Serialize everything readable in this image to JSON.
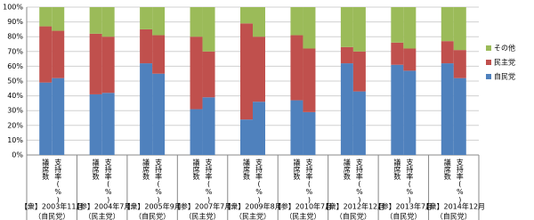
{
  "chart_data": {
    "type": "stacked_bar_100",
    "groups": [
      {
        "name": "【衆】2003年11月",
        "party": "（自民党）"
      },
      {
        "name": "【参】2004年7月",
        "party": "（民主党）"
      },
      {
        "name": "【衆】2005年9月",
        "party": "（自民党）"
      },
      {
        "name": "【参】2007年7月",
        "party": "（民主党）"
      },
      {
        "name": "【衆】2009年8月",
        "party": "（民主党）"
      },
      {
        "name": "【参】2010年7月",
        "party": "（民主党）"
      },
      {
        "name": "【衆】2012年12月",
        "party": "（自民党）"
      },
      {
        "name": "【参】2013年7月",
        "party": "（自民党）"
      },
      {
        "name": "【衆】2014年12月",
        "party": "（自民党）"
      }
    ],
    "categories": [
      "議席数",
      "支持率(%)",
      "議席数",
      "支持率(%)",
      "議席数",
      "支持率(%)",
      "議席数",
      "支持率(%)",
      "議席数",
      "支持率(%)",
      "議席数",
      "支持率(%)",
      "議席数",
      "支持率(%)",
      "議席数",
      "支持率(%)",
      "議席数",
      "支持率(%)"
    ],
    "series": [
      {
        "name": "自民党",
        "color": "#4f81bd",
        "values": [
          49,
          52,
          41,
          42,
          62,
          55,
          31,
          39,
          24,
          36,
          37,
          29,
          62,
          43,
          61,
          57,
          62,
          52
        ]
      },
      {
        "name": "民主党",
        "color": "#c0504d",
        "values": [
          38,
          32,
          41,
          38,
          23,
          26,
          49,
          31,
          65,
          44,
          44,
          43,
          11,
          27,
          15,
          15,
          15,
          19
        ]
      },
      {
        "name": "その他",
        "color": "#9bbb59",
        "values": [
          13,
          16,
          18,
          20,
          15,
          19,
          20,
          30,
          11,
          20,
          19,
          28,
          27,
          30,
          24,
          28,
          23,
          29
        ]
      }
    ],
    "ylim": [
      0,
      100
    ],
    "yticks": [
      {
        "value": 0,
        "label": "0%"
      },
      {
        "value": 10,
        "label": "10%"
      },
      {
        "value": 20,
        "label": "20%"
      },
      {
        "value": 30,
        "label": "30%"
      },
      {
        "value": 40,
        "label": "40%"
      },
      {
        "value": 50,
        "label": "50%"
      },
      {
        "value": 60,
        "label": "60%"
      },
      {
        "value": 70,
        "label": "70%"
      },
      {
        "value": 80,
        "label": "80%"
      },
      {
        "value": 90,
        "label": "90%"
      },
      {
        "value": 100,
        "label": "100%"
      }
    ],
    "grid": true,
    "legend": "right"
  }
}
